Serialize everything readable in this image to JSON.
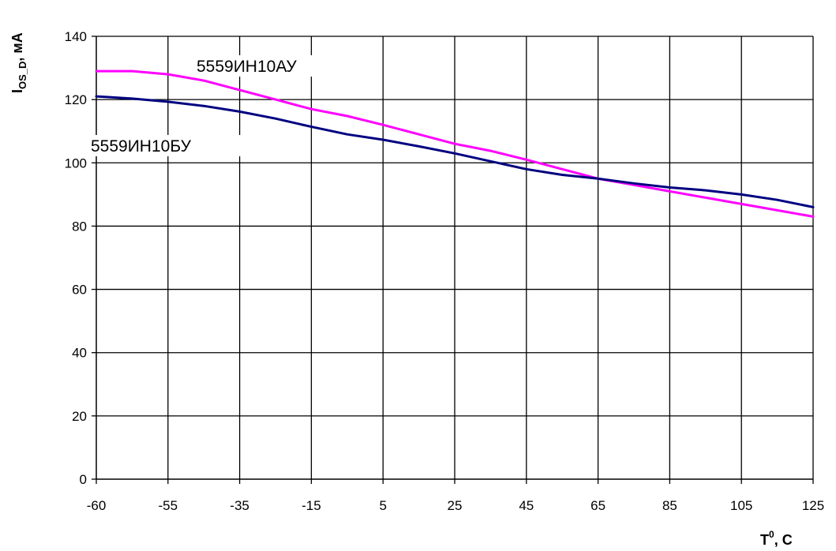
{
  "chart_data": {
    "type": "line",
    "x_categories": [
      "-60",
      "-55",
      "-35",
      "-15",
      "5",
      "25",
      "45",
      "65",
      "85",
      "105",
      "125"
    ],
    "ylim": [
      0,
      140
    ],
    "yticks": [
      0,
      20,
      40,
      60,
      80,
      100,
      120,
      140
    ],
    "grid": true,
    "ylabel": {
      "main": "I",
      "sub": "OS_D",
      "suffix": ", мА"
    },
    "xlabel": {
      "main": "T",
      "sup": "0",
      "suffix": ", C"
    },
    "series": [
      {
        "name": "5559ИН10АУ",
        "color": "#ff00ff",
        "x": [
          0,
          0.5,
          1,
          1.5,
          2,
          2.5,
          3,
          3.5,
          4,
          4.5,
          5,
          5.5,
          6,
          6.5,
          7,
          7.5,
          8,
          8.5,
          9,
          9.5,
          10
        ],
        "y": [
          129,
          129,
          128,
          126,
          123,
          120,
          117,
          114.8,
          112,
          109,
          106,
          103.8,
          101,
          98,
          95,
          93,
          91,
          89,
          87,
          85,
          83
        ]
      },
      {
        "name": "5559ИН10БУ",
        "color": "#000080",
        "x": [
          0,
          0.5,
          1,
          1.5,
          2,
          2.5,
          3,
          3.5,
          4,
          4.5,
          5,
          5.5,
          6,
          6.5,
          7,
          7.5,
          8,
          8.5,
          9,
          9.5,
          10
        ],
        "y": [
          121,
          120.3,
          119.3,
          118,
          116.2,
          114,
          111.4,
          109,
          107.3,
          105.2,
          103,
          100.5,
          98,
          96.2,
          95,
          93.5,
          92.2,
          91.3,
          90,
          88.3,
          86
        ]
      }
    ]
  }
}
